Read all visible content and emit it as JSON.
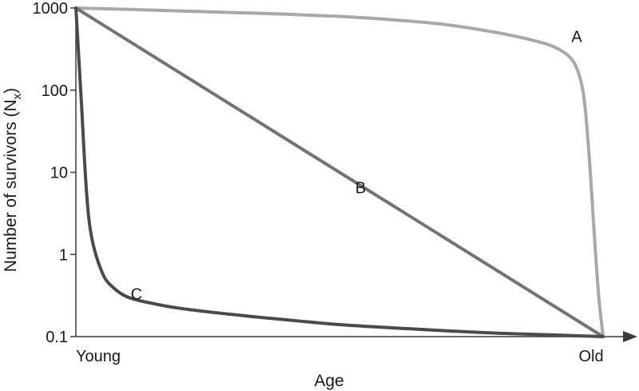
{
  "chart_data": {
    "type": "line",
    "title": "",
    "xlabel": "Age",
    "ylabel": "Number of survivors (N",
    "ylabel_subscript": "x",
    "ylabel_close": ")",
    "y_scale": "log",
    "ylim": [
      0.1,
      1000
    ],
    "y_ticks": [
      0.1,
      1,
      10,
      100,
      1000
    ],
    "y_tick_labels": [
      "0.1",
      "1",
      "10",
      "100",
      "1000"
    ],
    "xlim": [
      0,
      1
    ],
    "x_tick_labels": [
      {
        "x": 0,
        "label": "Young"
      },
      {
        "x": 1,
        "label": "Old"
      }
    ],
    "grid": false,
    "legend": "none",
    "series": [
      {
        "name": "A",
        "color": "#a8a8a8",
        "points": [
          [
            0,
            1000
          ],
          [
            0.1,
            960
          ],
          [
            0.2,
            920
          ],
          [
            0.3,
            880
          ],
          [
            0.4,
            840
          ],
          [
            0.5,
            790
          ],
          [
            0.6,
            720
          ],
          [
            0.7,
            630
          ],
          [
            0.8,
            500
          ],
          [
            0.87,
            400
          ],
          [
            0.91,
            330
          ],
          [
            0.94,
            240
          ],
          [
            0.955,
            150
          ],
          [
            0.965,
            70
          ],
          [
            0.975,
            12
          ],
          [
            0.985,
            1.2
          ],
          [
            0.992,
            0.3
          ],
          [
            1,
            0.1
          ]
        ]
      },
      {
        "name": "B",
        "color": "#737373",
        "points": [
          [
            0,
            1000
          ],
          [
            1,
            0.1
          ]
        ]
      },
      {
        "name": "C",
        "color": "#4a4a4a",
        "points": [
          [
            0,
            1000
          ],
          [
            0.01,
            80
          ],
          [
            0.02,
            6
          ],
          [
            0.03,
            1.6
          ],
          [
            0.05,
            0.6
          ],
          [
            0.07,
            0.4
          ],
          [
            0.1,
            0.3
          ],
          [
            0.15,
            0.25
          ],
          [
            0.2,
            0.22
          ],
          [
            0.3,
            0.185
          ],
          [
            0.4,
            0.16
          ],
          [
            0.5,
            0.14
          ],
          [
            0.6,
            0.128
          ],
          [
            0.7,
            0.118
          ],
          [
            0.8,
            0.11
          ],
          [
            0.9,
            0.105
          ],
          [
            1,
            0.1
          ]
        ]
      }
    ],
    "annotations": [
      {
        "text": "A",
        "x": 0.95,
        "y": 450
      },
      {
        "text": "B",
        "x": 0.54,
        "y": 6.5
      },
      {
        "text": "C",
        "x": 0.115,
        "y": 0.33
      }
    ]
  }
}
